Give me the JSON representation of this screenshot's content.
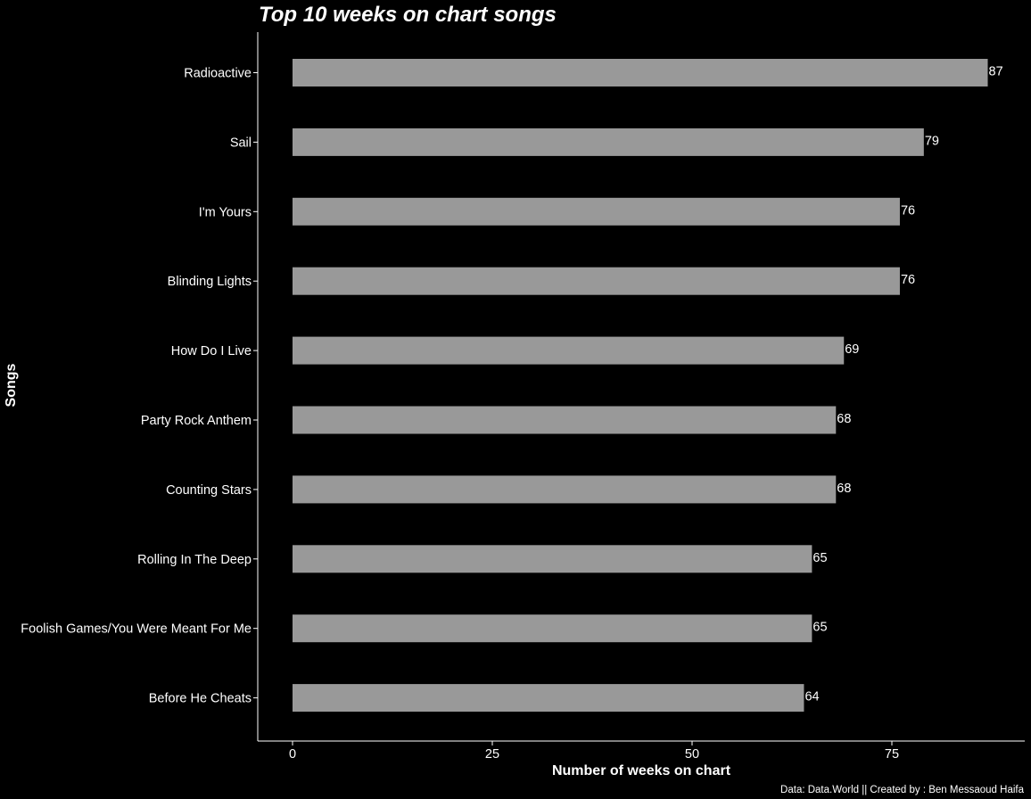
{
  "chart_data": {
    "type": "bar",
    "orientation": "horizontal",
    "title": "Top 10 weeks on chart songs",
    "xlabel": "Number of weeks on chart",
    "ylabel": "Songs",
    "caption": "Data: Data.World || Created by : Ben Messaoud Haifa",
    "categories": [
      "Radioactive",
      "Sail",
      "I'm Yours",
      "Blinding Lights",
      "How Do I Live",
      "Party Rock Anthem",
      "Counting Stars",
      "Rolling In The Deep",
      "Foolish Games/You Were Meant For Me",
      "Before He Cheats"
    ],
    "values": [
      87,
      79,
      76,
      76,
      69,
      68,
      68,
      65,
      65,
      64
    ],
    "xlim": [
      0,
      91.5
    ],
    "xticks": [
      0,
      25,
      50,
      75
    ],
    "xtick_labels": [
      "0",
      "25",
      "50",
      "75"
    ],
    "grid": false,
    "legend": "none",
    "colors": {
      "background": "#000000",
      "bar": "#999999",
      "text": "#ffffff",
      "axis": "#ffffff"
    }
  }
}
